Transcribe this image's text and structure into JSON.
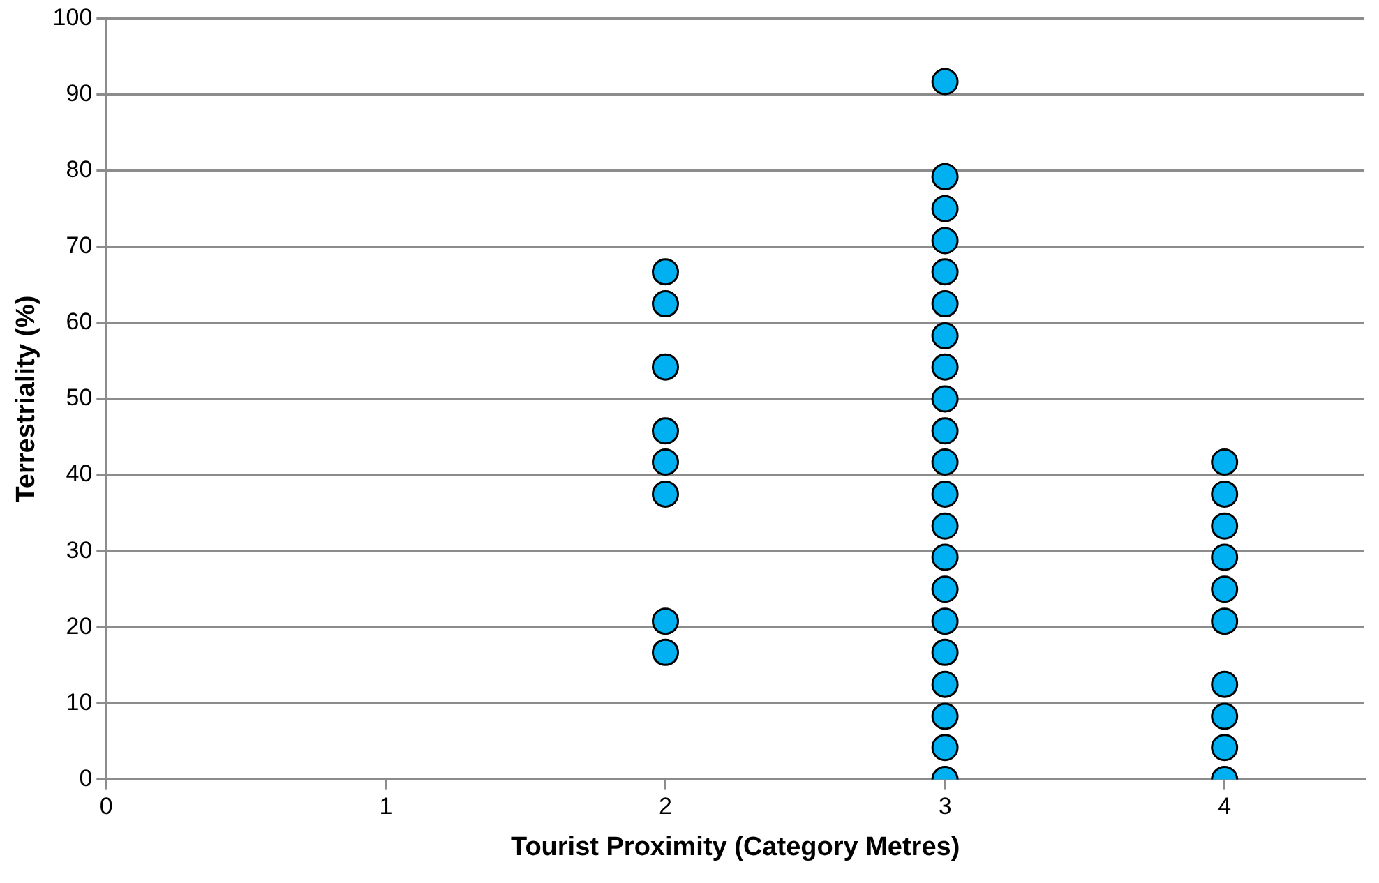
{
  "chart_data": {
    "type": "scatter",
    "xlabel": "Tourist Proximity (Category Metres)",
    "ylabel": "Terrestriality (%)",
    "series": [
      {
        "color": "#00b0f0",
        "x": [
          2,
          2,
          2,
          2,
          2,
          2,
          2,
          2,
          3,
          3,
          3,
          3,
          3,
          3,
          3,
          3,
          3,
          3,
          3,
          3,
          3,
          3,
          3,
          3,
          3,
          3,
          3,
          3,
          3,
          4,
          4,
          4,
          4,
          4,
          4,
          4,
          4,
          4,
          4
        ],
        "values": [
          66.7,
          62.5,
          54.2,
          45.8,
          41.7,
          37.5,
          20.8,
          16.7,
          91.7,
          79.2,
          75,
          70.8,
          66.7,
          62.5,
          58.3,
          54.2,
          50,
          45.8,
          41.7,
          37.5,
          33.3,
          29.2,
          25,
          20.8,
          16.7,
          12.5,
          8.3,
          4.2,
          0,
          41.7,
          37.5,
          33.3,
          29.2,
          25,
          20.8,
          12.5,
          8.3,
          4.2,
          0
        ]
      }
    ],
    "xlim": [
      0,
      4.5
    ],
    "xticks": [
      0,
      1,
      2,
      3,
      4
    ],
    "ylim": [
      0,
      100
    ],
    "yticks": [
      0,
      10,
      20,
      30,
      40,
      50,
      60,
      70,
      80,
      90,
      100
    ],
    "grid": "y",
    "legend": false,
    "marker": "circle"
  }
}
